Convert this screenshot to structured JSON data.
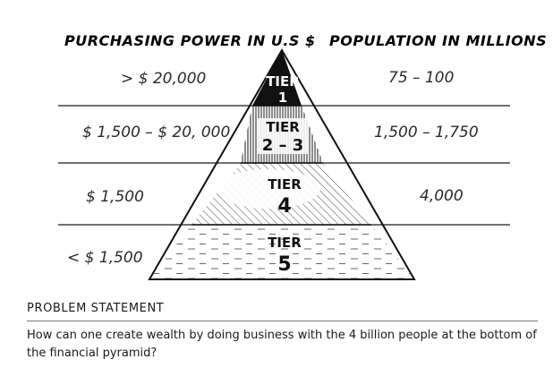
{
  "diagram": {
    "left_header": "PURCHASING POWER IN U.S $",
    "right_header": "POPULATION IN MILLIONS",
    "tiers": [
      {
        "word": "TIER",
        "number": "1",
        "purchasing_power": "> $ 20,000",
        "population": "75 – 100"
      },
      {
        "word": "TIER",
        "number": "2 – 3",
        "purchasing_power": "$ 1,500 – $ 20, 000",
        "population": "1,500 – 1,750"
      },
      {
        "word": "TIER",
        "number": "4",
        "purchasing_power": "$ 1,500",
        "population": "4,000"
      },
      {
        "word": "TIER",
        "number": "5",
        "purchasing_power": "< $ 1,500",
        "population": ""
      }
    ]
  },
  "problem": {
    "heading": "PROBLEM STATEMENT",
    "text": "How can one create wealth by doing business with the 4 billion people at the bottom of the financial pyramid?"
  }
}
